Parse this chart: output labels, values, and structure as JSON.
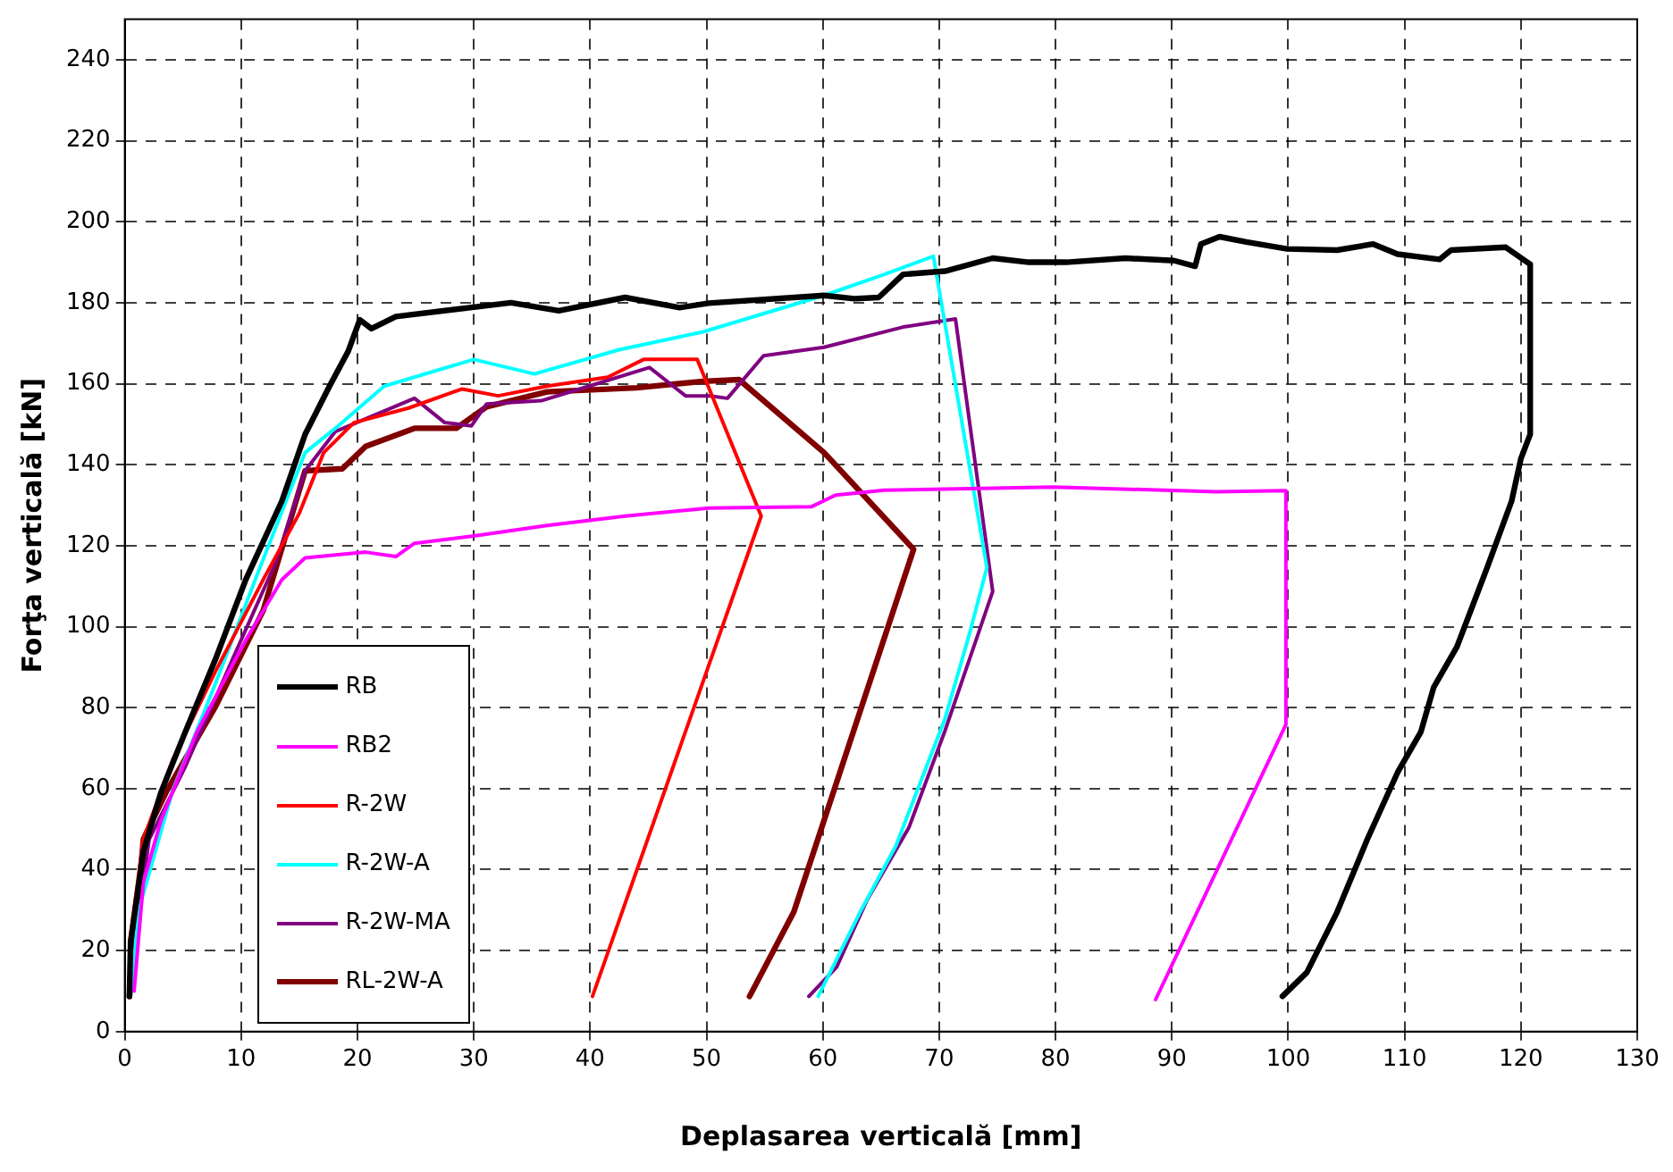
{
  "chart_data": {
    "type": "line",
    "xlabel": "Deplasarea verticală [mm]",
    "ylabel": "Forţa verticală [kN]",
    "xlim": [
      0,
      130
    ],
    "xticks": [
      0,
      10,
      20,
      30,
      40,
      50,
      60,
      70,
      80,
      90,
      100,
      110,
      120,
      130
    ],
    "ylim": [
      0,
      250
    ],
    "yticks": [
      0,
      20,
      40,
      60,
      80,
      100,
      120,
      140,
      160,
      180,
      200,
      220,
      240
    ],
    "grid": true,
    "legend": "bottom left",
    "line_style": "solid",
    "marker": "none",
    "series": [
      {
        "name": "RB",
        "color": "#000000",
        "x": [
          0.4,
          0.5,
          1.6,
          3.1,
          5.2,
          7.8,
          10.4,
          13.5,
          15.5,
          17.6,
          19.2,
          20.2,
          21.2,
          23.3,
          33.2,
          37.3,
          43,
          47.7,
          50.2,
          60.1,
          62.7,
          64.8,
          66.9,
          70.5,
          74.6,
          77.7,
          80.9,
          86,
          90.2,
          92,
          92.5,
          94.1,
          96.4,
          99.9,
          104.2,
          107.3,
          109.4,
          113,
          114,
          118.7,
          120.8,
          120.8,
          120,
          119.2,
          117.1,
          114.5,
          112.5,
          111.4,
          109.4,
          106.8,
          104.2,
          101.6,
          99.5
        ],
        "values": [
          8.7,
          22,
          44.5,
          59,
          74,
          92,
          111.6,
          131,
          147.5,
          159.4,
          168,
          175.8,
          173.6,
          176.6,
          180,
          178,
          181.3,
          178.8,
          179.9,
          181.8,
          181,
          181.3,
          187,
          187.8,
          191,
          190,
          190,
          191,
          190.4,
          189,
          194.5,
          196.3,
          195,
          193.3,
          193,
          194.5,
          192,
          190.7,
          193,
          193.7,
          189.5,
          147.5,
          141.5,
          131,
          114.6,
          95,
          85,
          74,
          64,
          47.5,
          29.5,
          14.6,
          8.7
        ]
      },
      {
        "name": "RB2",
        "color": "#ff00ff",
        "x": [
          0.8,
          1.6,
          3.1,
          6.2,
          10.4,
          13.5,
          15.5,
          20.7,
          23.3,
          24.9,
          30,
          36.3,
          43,
          50.2,
          59,
          61.1,
          65.3,
          79.8,
          93.8,
          99.8,
          99.8,
          88.6
        ],
        "values": [
          10,
          37,
          52,
          74,
          96.7,
          111.6,
          117,
          118.4,
          117.3,
          120.6,
          122.4,
          125,
          127.3,
          129.3,
          129.6,
          132.5,
          133.7,
          134.5,
          133.3,
          133.6,
          75.8,
          7.9
        ]
      },
      {
        "name": "R-2W",
        "color": "#ff0000",
        "x": [
          0.4,
          1.6,
          4.1,
          7.8,
          11.9,
          15,
          17.1,
          19.7,
          24.4,
          29,
          32.1,
          36.3,
          41.5,
          44.6,
          49.2,
          54.7,
          40.2
        ],
        "values": [
          22,
          47.5,
          67,
          89,
          111.6,
          128,
          143,
          150.4,
          154,
          158.7,
          157,
          159.4,
          161.6,
          166,
          166,
          127.3,
          8.7
        ]
      },
      {
        "name": "R-2W-A",
        "color": "#00ffff",
        "x": [
          0.5,
          1.2,
          4.1,
          7.8,
          11.4,
          15.5,
          18.1,
          22.3,
          30,
          35.2,
          42.5,
          49.7,
          60.1,
          65.3,
          69.5,
          74.1,
          72.6,
          70.5,
          66.3,
          63.2,
          59.6
        ],
        "values": [
          8.7,
          30,
          59.4,
          86,
          113,
          143,
          149,
          159.4,
          166,
          162.4,
          168.4,
          172.8,
          181.8,
          187,
          191.5,
          114.6,
          98.2,
          77.3,
          46,
          29.5,
          8.7
        ]
      },
      {
        "name": "R-2W-MA",
        "color": "#800080",
        "x": [
          0.5,
          2.1,
          5.2,
          9.3,
          13,
          15.5,
          18.1,
          24.9,
          27.5,
          29.8,
          31.1,
          35.8,
          39.9,
          45.1,
          48.2,
          50.3,
          51.8,
          54.9,
          60.1,
          66.9,
          71.4,
          74.6,
          70.5,
          67.4,
          63.8,
          61.2,
          58.8
        ],
        "values": [
          14.6,
          47.5,
          65.4,
          92.2,
          116,
          138.5,
          148.2,
          156.4,
          150.4,
          149.6,
          155,
          155.8,
          159.4,
          164,
          157,
          157,
          156.4,
          166.9,
          169,
          174,
          176,
          108.7,
          74.3,
          50.4,
          32.5,
          16,
          8.7
        ]
      },
      {
        "name": "RL-2W-A",
        "color": "#800000",
        "x": [
          0.4,
          1.6,
          3.6,
          7.8,
          11.9,
          15.5,
          18.7,
          20.7,
          24.9,
          28.5,
          31.1,
          36.3,
          44,
          49.7,
          52.8,
          60.1,
          67.8,
          57.5,
          53.7
        ],
        "values": [
          8.7,
          47.5,
          59.4,
          80.3,
          104,
          138.5,
          139,
          144.5,
          149,
          149,
          154.3,
          158,
          159,
          160.6,
          161,
          143,
          119.1,
          29.5,
          8.7
        ]
      }
    ]
  }
}
